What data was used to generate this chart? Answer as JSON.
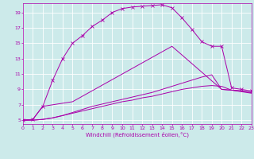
{
  "xlabel": "Windchill (Refroidissement éolien,°C)",
  "bg_color": "#cceaea",
  "grid_color": "#ffffff",
  "line_color": "#aa00aa",
  "xlim": [
    0,
    23
  ],
  "ylim": [
    4.5,
    20.2
  ],
  "xticks": [
    0,
    1,
    2,
    3,
    4,
    5,
    6,
    7,
    8,
    9,
    10,
    11,
    12,
    13,
    14,
    15,
    16,
    17,
    18,
    19,
    20,
    21,
    22,
    23
  ],
  "yticks": [
    5,
    7,
    9,
    11,
    13,
    15,
    17,
    19
  ],
  "line1_x": [
    0,
    1,
    2,
    3,
    4,
    5,
    6,
    7,
    8,
    9,
    10,
    11,
    12,
    13,
    14,
    15,
    16,
    17,
    18,
    19,
    20,
    21,
    22,
    23
  ],
  "line1_y": [
    5.0,
    5.1,
    6.8,
    10.2,
    13.0,
    15.0,
    16.0,
    17.2,
    18.0,
    19.0,
    19.5,
    19.7,
    19.8,
    19.9,
    20.0,
    19.6,
    18.3,
    16.8,
    15.2,
    14.6,
    14.6,
    9.2,
    9.0,
    8.8
  ],
  "line2_x": [
    0,
    1,
    2,
    3,
    4,
    5,
    6,
    7,
    8,
    9,
    10,
    11,
    12,
    13,
    14,
    15,
    16,
    17,
    18,
    19,
    20,
    21,
    22,
    23
  ],
  "line2_y": [
    5.0,
    5.0,
    5.1,
    5.3,
    5.6,
    6.0,
    6.4,
    6.8,
    7.1,
    7.4,
    7.7,
    8.0,
    8.3,
    8.6,
    9.0,
    9.4,
    9.8,
    10.2,
    10.6,
    10.9,
    9.0,
    8.9,
    8.8,
    8.6
  ],
  "line3_x": [
    0,
    1,
    2,
    3,
    4,
    5,
    6,
    7,
    8,
    9,
    10,
    11,
    12,
    13,
    14,
    15,
    16,
    17,
    18,
    19,
    20,
    21,
    22,
    23
  ],
  "line3_y": [
    5.0,
    5.0,
    5.1,
    5.3,
    5.6,
    5.9,
    6.2,
    6.5,
    6.8,
    7.1,
    7.4,
    7.6,
    7.9,
    8.1,
    8.4,
    8.7,
    9.0,
    9.2,
    9.4,
    9.5,
    9.4,
    8.9,
    8.7,
    8.5
  ],
  "line4_x": [
    0,
    1,
    2,
    3,
    4,
    5,
    15,
    20,
    21,
    22,
    23
  ],
  "line4_y": [
    5.0,
    5.1,
    6.8,
    7.0,
    7.2,
    7.4,
    14.6,
    9.0,
    8.9,
    8.8,
    8.6
  ]
}
